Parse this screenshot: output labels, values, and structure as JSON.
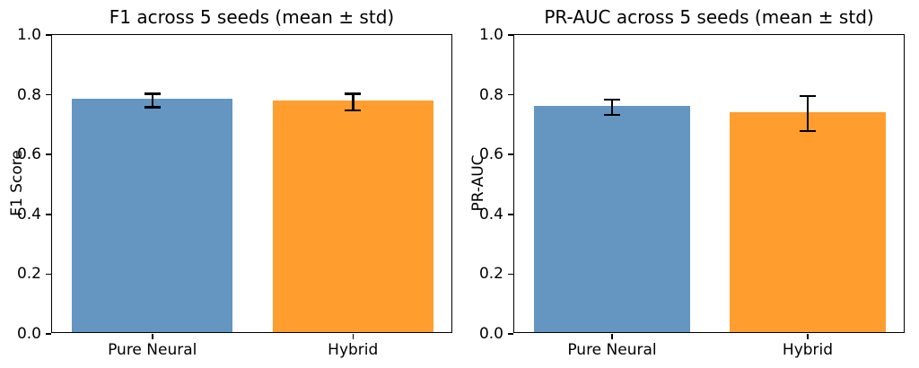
{
  "figure": {
    "background": "#ffffff",
    "spine_color": "#000000",
    "error_bar_color": "#000000"
  },
  "chart_data": [
    {
      "type": "bar",
      "title": "F1 across 5 seeds (mean ± std)",
      "ylabel": "F1 Score",
      "xlabel": "",
      "categories": [
        "Pure Neural",
        "Hybrid"
      ],
      "values": [
        0.781,
        0.775
      ],
      "errors": [
        0.023,
        0.028
      ],
      "bar_colors": [
        "#6496c1",
        "#ff9d2e"
      ],
      "ylim": [
        0.0,
        1.0
      ],
      "yticks": [
        0.0,
        0.2,
        0.4,
        0.6,
        0.8,
        1.0
      ],
      "yticklabels": [
        "0.0",
        "0.2",
        "0.4",
        "0.6",
        "0.8",
        "1.0"
      ],
      "grid": false,
      "legend": "none"
    },
    {
      "type": "bar",
      "title": "PR-AUC across 5 seeds (mean ± std)",
      "ylabel": "PR-AUC",
      "xlabel": "",
      "categories": [
        "Pure Neural",
        "Hybrid"
      ],
      "values": [
        0.758,
        0.737
      ],
      "errors": [
        0.026,
        0.059
      ],
      "bar_colors": [
        "#6496c1",
        "#ff9d2e"
      ],
      "ylim": [
        0.0,
        1.0
      ],
      "yticks": [
        0.0,
        0.2,
        0.4,
        0.6,
        0.8,
        1.0
      ],
      "yticklabels": [
        "0.0",
        "0.2",
        "0.4",
        "0.6",
        "0.8",
        "1.0"
      ],
      "grid": false,
      "legend": "none"
    }
  ]
}
